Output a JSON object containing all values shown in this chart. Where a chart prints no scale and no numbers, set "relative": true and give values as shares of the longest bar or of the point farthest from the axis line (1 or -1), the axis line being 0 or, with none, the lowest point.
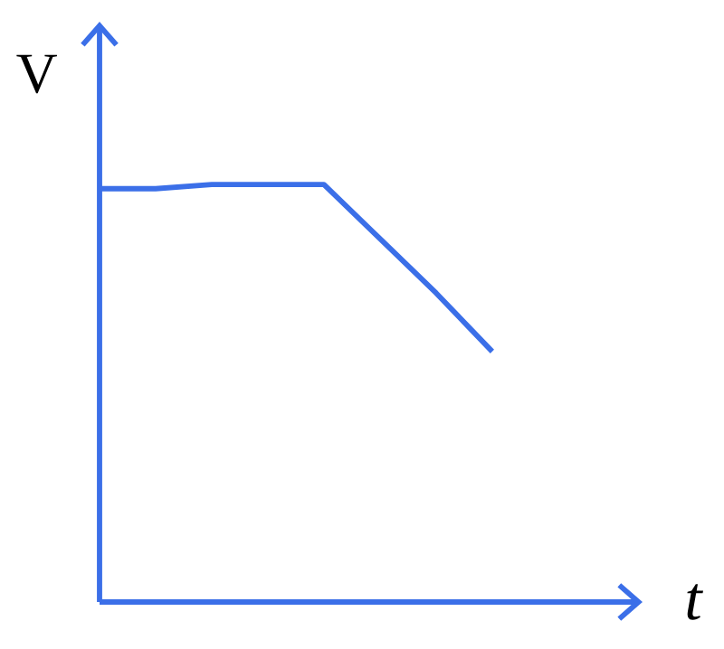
{
  "chart_data": {
    "type": "line",
    "relative": true,
    "xlabel": "t",
    "ylabel": "V",
    "categories": [
      null,
      null,
      null,
      null,
      null,
      null,
      null,
      null
    ],
    "values": [
      0.99,
      0.99,
      1,
      1,
      1,
      0.87,
      0.74,
      0.6
    ],
    "color": "#3b6fe8"
  }
}
